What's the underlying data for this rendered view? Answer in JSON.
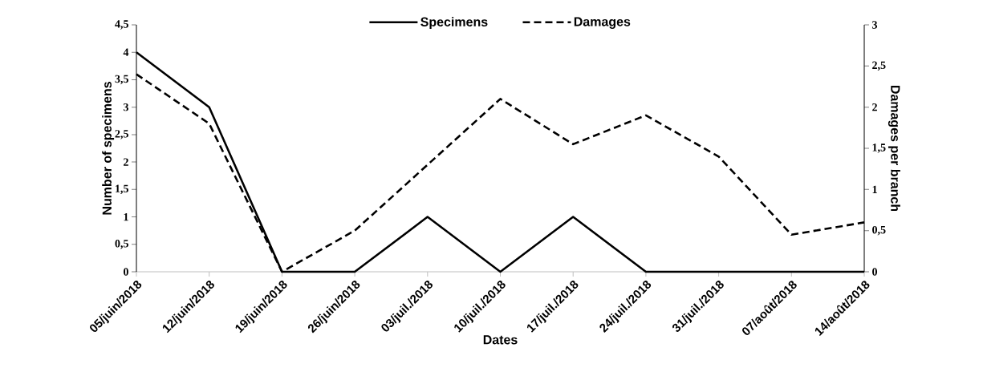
{
  "chart_data": {
    "type": "line",
    "xlabel": "Dates",
    "ylabel": "Number of specimens",
    "y2label": "Damages per branch",
    "categories": [
      "05/juin/2018",
      "12/juin/2018",
      "19/juin/2018",
      "26/juin/2018",
      "03/juil./2018",
      "10/juil./2018",
      "17/juil./2018",
      "24/juil./2018",
      "31/juil./2018",
      "07/août/2018",
      "14/août/2018"
    ],
    "series": [
      {
        "name": "Specimens",
        "color": "#000000",
        "line_style": "solid",
        "values": [
          4,
          3,
          0,
          0,
          1,
          0,
          1,
          0,
          0,
          0,
          0
        ]
      },
      {
        "name": "Damages",
        "color": "#000000",
        "line_style": "dashed",
        "axis": "y2",
        "values": [
          2.4,
          1.8,
          0,
          0.5,
          1.3,
          2.1,
          1.55,
          1.9,
          1.4,
          0.45,
          0.6
        ]
      }
    ],
    "ylim": [
      0,
      4.5
    ],
    "yticks": [
      0,
      {
        "value": 0.5,
        "label": "0,5"
      },
      1,
      {
        "value": 1.5,
        "label": "1,5"
      },
      2,
      {
        "value": 2.5,
        "label": "2,5"
      },
      3,
      {
        "value": 3.5,
        "label": "3,5"
      },
      4,
      {
        "value": 4.5,
        "label": "4,5"
      }
    ],
    "y2lim": [
      0,
      3
    ],
    "y2ticks": [
      0,
      {
        "value": 0.5,
        "label": "0,5"
      },
      1,
      {
        "value": 1.5,
        "label": "1,5"
      },
      2,
      {
        "value": 2.5,
        "label": "2,5"
      },
      3
    ],
    "legend": "top",
    "grid": false,
    "marker": "none"
  }
}
